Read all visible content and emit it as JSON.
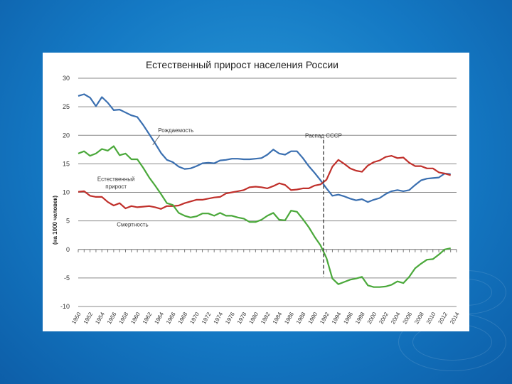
{
  "slide": {
    "background_color": "#1479c4"
  },
  "chart_data": {
    "type": "line",
    "title": "Естественный прирост населения России",
    "ylabel": "(на 1000 человек)",
    "xlabel": "",
    "ylim": [
      -10,
      30
    ],
    "y_ticks": [
      "30",
      "25",
      "20",
      "15",
      "10",
      "5",
      "0",
      "-5",
      "-10"
    ],
    "y_tick_values": [
      30,
      25,
      20,
      15,
      10,
      5,
      0,
      -5,
      -10
    ],
    "x_tick_labels": [
      "1950",
      "1952",
      "1954",
      "1956",
      "1958",
      "1960",
      "1962",
      "1964",
      "1966",
      "1968",
      "1970",
      "1972",
      "1974",
      "1976",
      "1978",
      "1980",
      "1982",
      "1984",
      "1986",
      "1988",
      "1990",
      "1992",
      "1994",
      "1996",
      "1998",
      "2000",
      "2002",
      "2004",
      "2006",
      "2008",
      "2010",
      "2012",
      "2014"
    ],
    "xlim": [
      1950,
      2014
    ],
    "grid": "horizontal",
    "series": [
      {
        "name": "Рождаемость",
        "color": "#3a6fb0",
        "x": [
          1950,
          1951,
          1952,
          1953,
          1954,
          1955,
          1956,
          1957,
          1958,
          1959,
          1960,
          1961,
          1962,
          1963,
          1964,
          1965,
          1966,
          1967,
          1968,
          1969,
          1970,
          1971,
          1972,
          1973,
          1974,
          1975,
          1976,
          1977,
          1978,
          1979,
          1980,
          1981,
          1982,
          1983,
          1984,
          1985,
          1986,
          1987,
          1988,
          1989,
          1990,
          1991,
          1992,
          1993,
          1994,
          1995,
          1996,
          1997,
          1998,
          1999,
          2000,
          2001,
          2002,
          2003,
          2004,
          2005,
          2006,
          2007,
          2008,
          2009,
          2010,
          2011,
          2012,
          2013
        ],
        "values": [
          26.9,
          27.2,
          26.6,
          25.1,
          26.7,
          25.7,
          24.4,
          24.5,
          24.0,
          23.5,
          23.2,
          21.8,
          20.2,
          18.6,
          16.9,
          15.7,
          15.3,
          14.5,
          14.1,
          14.2,
          14.6,
          15.1,
          15.2,
          15.1,
          15.6,
          15.7,
          15.9,
          15.9,
          15.8,
          15.8,
          15.9,
          16.0,
          16.6,
          17.5,
          16.8,
          16.6,
          17.2,
          17.2,
          16.0,
          14.6,
          13.4,
          12.1,
          10.7,
          9.4,
          9.6,
          9.3,
          8.9,
          8.6,
          8.8,
          8.3,
          8.7,
          9.0,
          9.7,
          10.2,
          10.4,
          10.2,
          10.4,
          11.3,
          12.1,
          12.4,
          12.5,
          12.6,
          13.3,
          13.2
        ]
      },
      {
        "name": "Смертность",
        "color": "#c0302b",
        "x": [
          1950,
          1951,
          1952,
          1953,
          1954,
          1955,
          1956,
          1957,
          1958,
          1959,
          1960,
          1961,
          1962,
          1963,
          1964,
          1965,
          1966,
          1967,
          1968,
          1969,
          1970,
          1971,
          1972,
          1973,
          1974,
          1975,
          1976,
          1977,
          1978,
          1979,
          1980,
          1981,
          1982,
          1983,
          1984,
          1985,
          1986,
          1987,
          1988,
          1989,
          1990,
          1991,
          1992,
          1993,
          1994,
          1995,
          1996,
          1997,
          1998,
          1999,
          2000,
          2001,
          2002,
          2003,
          2004,
          2005,
          2006,
          2007,
          2008,
          2009,
          2010,
          2011,
          2012,
          2013
        ],
        "values": [
          10.1,
          10.2,
          9.4,
          9.2,
          9.2,
          8.3,
          7.7,
          8.1,
          7.2,
          7.6,
          7.4,
          7.5,
          7.6,
          7.4,
          7.1,
          7.6,
          7.6,
          7.7,
          8.1,
          8.4,
          8.7,
          8.7,
          8.9,
          9.1,
          9.2,
          9.8,
          10.0,
          10.2,
          10.4,
          10.9,
          11.0,
          10.9,
          10.7,
          11.1,
          11.6,
          11.3,
          10.4,
          10.5,
          10.7,
          10.7,
          11.2,
          11.4,
          12.2,
          14.5,
          15.7,
          15.0,
          14.2,
          13.8,
          13.6,
          14.7,
          15.3,
          15.6,
          16.2,
          16.4,
          16.0,
          16.1,
          15.2,
          14.6,
          14.6,
          14.2,
          14.2,
          13.5,
          13.3,
          13.0
        ]
      },
      {
        "name": "Естественный прирост",
        "color": "#4aa83a",
        "x": [
          1950,
          1951,
          1952,
          1953,
          1954,
          1955,
          1956,
          1957,
          1958,
          1959,
          1960,
          1961,
          1962,
          1963,
          1964,
          1965,
          1966,
          1967,
          1968,
          1969,
          1970,
          1971,
          1972,
          1973,
          1974,
          1975,
          1976,
          1977,
          1978,
          1979,
          1980,
          1981,
          1982,
          1983,
          1984,
          1985,
          1986,
          1987,
          1988,
          1989,
          1990,
          1991,
          1992,
          1993,
          1994,
          1995,
          1996,
          1997,
          1998,
          1999,
          2000,
          2001,
          2002,
          2003,
          2004,
          2005,
          2006,
          2007,
          2008,
          2009,
          2010,
          2011,
          2012,
          2013
        ],
        "values": [
          16.8,
          17.2,
          16.4,
          16.8,
          17.6,
          17.3,
          18.1,
          16.5,
          16.8,
          15.8,
          15.8,
          14.3,
          12.6,
          11.2,
          9.7,
          8.1,
          7.8,
          6.4,
          5.9,
          5.6,
          5.8,
          6.3,
          6.3,
          5.9,
          6.4,
          5.9,
          5.9,
          5.6,
          5.4,
          4.8,
          4.8,
          5.2,
          5.9,
          6.4,
          5.2,
          5.1,
          6.8,
          6.6,
          5.3,
          3.9,
          2.2,
          0.7,
          -1.5,
          -5.1,
          -6.1,
          -5.7,
          -5.3,
          -5.1,
          -4.8,
          -6.3,
          -6.6,
          -6.6,
          -6.5,
          -6.2,
          -5.6,
          -5.9,
          -4.8,
          -3.3,
          -2.5,
          -1.8,
          -1.7,
          -0.9,
          0.0,
          0.2
        ]
      }
    ],
    "annotations": [
      {
        "text": "Рождаемость"
      },
      {
        "text": "Естественный"
      },
      {
        "text": "прирост"
      },
      {
        "text": "Смертность"
      },
      {
        "text": "Распад СССР",
        "x": 1991.5
      }
    ],
    "vline_x": 1991.5
  }
}
